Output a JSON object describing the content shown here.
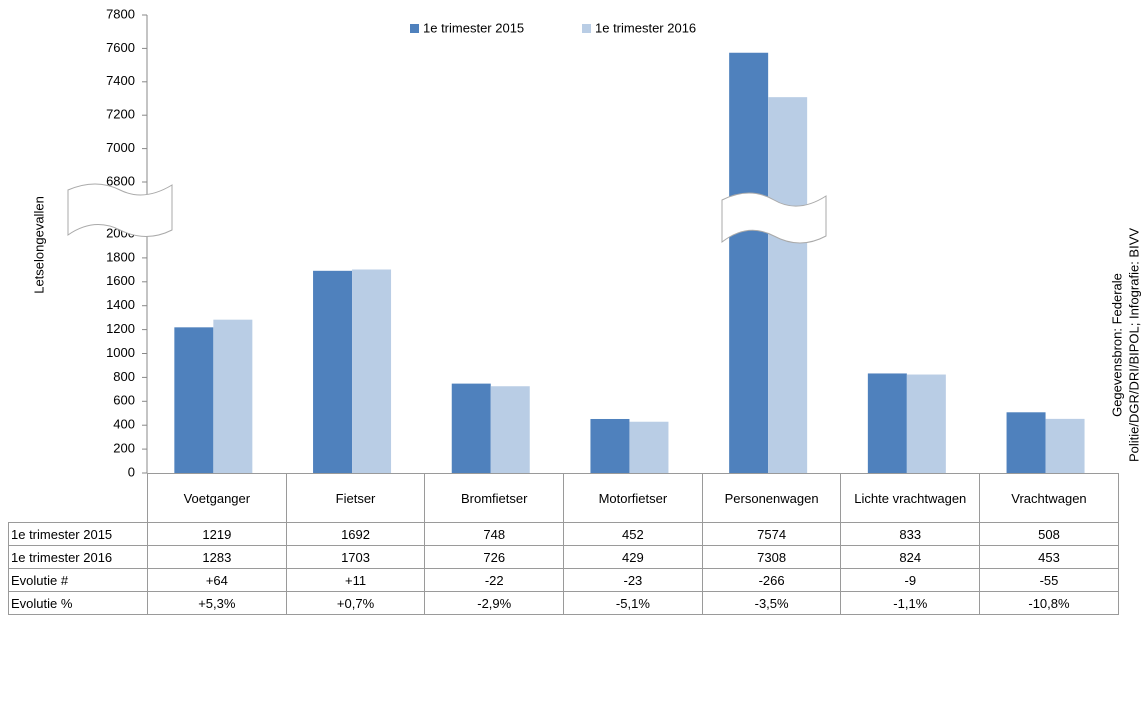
{
  "chart_data": {
    "type": "bar",
    "y_label": "Letselongevallen",
    "source": [
      "Gegevensbron: Federale",
      "Politie/DGR/DRI/BIPOL; Infografie: BIVV"
    ],
    "categories": [
      "Voetganger",
      "Fietser",
      "Bromfietser",
      "Motorfietser",
      "Personenwagen",
      "Lichte vrachtwagen",
      "Vrachtwagen"
    ],
    "series": [
      {
        "name": "1e trimester 2015",
        "color": "#4f81bd",
        "values": [
          1219,
          1692,
          748,
          452,
          7574,
          833,
          508
        ]
      },
      {
        "name": "1e trimester 2016",
        "color": "#b9cde5",
        "values": [
          1283,
          1703,
          726,
          429,
          7308,
          824,
          453
        ]
      }
    ],
    "table_rows": [
      {
        "name": "Evolutie #",
        "values": [
          "+64",
          "+11",
          "-22",
          "-23",
          "-266",
          "-9",
          "-55"
        ]
      },
      {
        "name": "Evolutie %",
        "values": [
          "+5,3%",
          "+0,7%",
          "-2,9%",
          "-5,1%",
          "-3,5%",
          "-1,1%",
          "-10,8%"
        ]
      }
    ],
    "ylim": [
      0,
      7800
    ],
    "y_break": [
      2000,
      6800
    ],
    "yticks": [
      0,
      200,
      400,
      600,
      800,
      1000,
      1200,
      1400,
      1600,
      1800,
      2000,
      6800,
      7000,
      7200,
      7400,
      7600,
      7800
    ],
    "legend": "top"
  }
}
